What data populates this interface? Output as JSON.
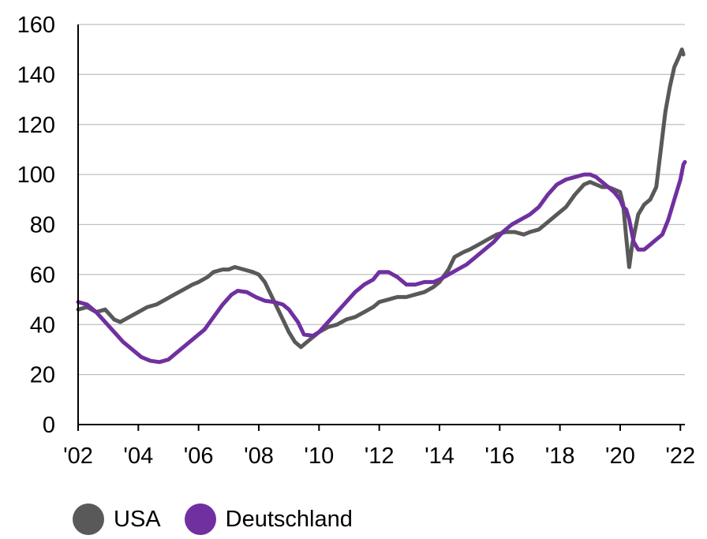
{
  "chart_data": {
    "type": "line",
    "ylim": [
      0,
      160
    ],
    "yticks": [
      "0",
      "20",
      "40",
      "60",
      "80",
      "100",
      "120",
      "140",
      "160"
    ],
    "xlim": [
      2002,
      2022.15
    ],
    "xticks": [
      {
        "x": 2002,
        "label": "'02"
      },
      {
        "x": 2004,
        "label": "'04"
      },
      {
        "x": 2006,
        "label": "'06"
      },
      {
        "x": 2008,
        "label": "'08"
      },
      {
        "x": 2010,
        "label": "'10"
      },
      {
        "x": 2012,
        "label": "'12"
      },
      {
        "x": 2014,
        "label": "'14"
      },
      {
        "x": 2016,
        "label": "'16"
      },
      {
        "x": 2018,
        "label": "'18"
      },
      {
        "x": 2020,
        "label": "'20"
      },
      {
        "x": 2022,
        "label": "'22"
      }
    ],
    "grid": true,
    "legend_position": "bottom-left",
    "series": [
      {
        "name": "USA",
        "color": "#595959",
        "points": [
          [
            2002.0,
            46
          ],
          [
            2002.3,
            47
          ],
          [
            2002.6,
            45
          ],
          [
            2002.9,
            46
          ],
          [
            2003.2,
            42
          ],
          [
            2003.4,
            41
          ],
          [
            2003.7,
            43
          ],
          [
            2004.0,
            45
          ],
          [
            2004.3,
            47
          ],
          [
            2004.6,
            48
          ],
          [
            2004.9,
            50
          ],
          [
            2005.2,
            52
          ],
          [
            2005.5,
            54
          ],
          [
            2005.8,
            56
          ],
          [
            2006.0,
            57
          ],
          [
            2006.3,
            59
          ],
          [
            2006.5,
            61
          ],
          [
            2006.8,
            62
          ],
          [
            2007.0,
            62
          ],
          [
            2007.2,
            63
          ],
          [
            2007.5,
            62
          ],
          [
            2007.8,
            61
          ],
          [
            2008.0,
            60
          ],
          [
            2008.2,
            57
          ],
          [
            2008.4,
            52
          ],
          [
            2008.6,
            47
          ],
          [
            2008.8,
            42
          ],
          [
            2009.0,
            37
          ],
          [
            2009.2,
            33
          ],
          [
            2009.4,
            31
          ],
          [
            2009.6,
            33
          ],
          [
            2009.8,
            35
          ],
          [
            2010.0,
            37
          ],
          [
            2010.3,
            39
          ],
          [
            2010.6,
            40
          ],
          [
            2010.9,
            42
          ],
          [
            2011.2,
            43
          ],
          [
            2011.5,
            45
          ],
          [
            2011.8,
            47
          ],
          [
            2012.0,
            49
          ],
          [
            2012.3,
            50
          ],
          [
            2012.6,
            51
          ],
          [
            2012.9,
            51
          ],
          [
            2013.2,
            52
          ],
          [
            2013.5,
            53
          ],
          [
            2013.8,
            55
          ],
          [
            2014.0,
            57
          ],
          [
            2014.3,
            62
          ],
          [
            2014.5,
            67
          ],
          [
            2014.8,
            69
          ],
          [
            2015.0,
            70
          ],
          [
            2015.3,
            72
          ],
          [
            2015.6,
            74
          ],
          [
            2015.9,
            76
          ],
          [
            2016.2,
            77
          ],
          [
            2016.5,
            77
          ],
          [
            2016.8,
            76
          ],
          [
            2017.0,
            77
          ],
          [
            2017.3,
            78
          ],
          [
            2017.6,
            81
          ],
          [
            2017.9,
            84
          ],
          [
            2018.2,
            87
          ],
          [
            2018.5,
            92
          ],
          [
            2018.8,
            96
          ],
          [
            2019.0,
            97
          ],
          [
            2019.2,
            96
          ],
          [
            2019.4,
            95
          ],
          [
            2019.6,
            95
          ],
          [
            2019.8,
            94
          ],
          [
            2020.0,
            93
          ],
          [
            2020.1,
            88
          ],
          [
            2020.2,
            75
          ],
          [
            2020.3,
            63
          ],
          [
            2020.4,
            72
          ],
          [
            2020.6,
            84
          ],
          [
            2020.8,
            88
          ],
          [
            2021.0,
            90
          ],
          [
            2021.2,
            95
          ],
          [
            2021.35,
            110
          ],
          [
            2021.5,
            125
          ],
          [
            2021.65,
            135
          ],
          [
            2021.8,
            143
          ],
          [
            2021.95,
            147
          ],
          [
            2022.05,
            150
          ],
          [
            2022.1,
            148
          ]
        ]
      },
      {
        "name": "Deutschland",
        "color": "#7030a0",
        "points": [
          [
            2002.0,
            49
          ],
          [
            2002.3,
            48
          ],
          [
            2002.6,
            45
          ],
          [
            2002.9,
            41
          ],
          [
            2003.2,
            37
          ],
          [
            2003.5,
            33
          ],
          [
            2003.8,
            30
          ],
          [
            2004.1,
            27
          ],
          [
            2004.4,
            25.5
          ],
          [
            2004.7,
            25
          ],
          [
            2005.0,
            26
          ],
          [
            2005.3,
            29
          ],
          [
            2005.6,
            32
          ],
          [
            2005.9,
            35
          ],
          [
            2006.2,
            38
          ],
          [
            2006.5,
            43
          ],
          [
            2006.8,
            48
          ],
          [
            2007.1,
            52
          ],
          [
            2007.3,
            53.5
          ],
          [
            2007.6,
            53
          ],
          [
            2007.9,
            51
          ],
          [
            2008.2,
            49.5
          ],
          [
            2008.5,
            49
          ],
          [
            2008.8,
            48
          ],
          [
            2009.0,
            46
          ],
          [
            2009.3,
            41
          ],
          [
            2009.5,
            36
          ],
          [
            2009.8,
            35.5
          ],
          [
            2010.0,
            37
          ],
          [
            2010.3,
            41
          ],
          [
            2010.6,
            45
          ],
          [
            2010.9,
            49
          ],
          [
            2011.2,
            53
          ],
          [
            2011.5,
            56
          ],
          [
            2011.8,
            58
          ],
          [
            2012.0,
            61
          ],
          [
            2012.3,
            61
          ],
          [
            2012.6,
            59
          ],
          [
            2012.9,
            56
          ],
          [
            2013.2,
            56
          ],
          [
            2013.5,
            57
          ],
          [
            2013.8,
            57
          ],
          [
            2014.0,
            58
          ],
          [
            2014.3,
            60
          ],
          [
            2014.6,
            62
          ],
          [
            2014.9,
            64
          ],
          [
            2015.2,
            67
          ],
          [
            2015.5,
            70
          ],
          [
            2015.8,
            73
          ],
          [
            2016.1,
            77
          ],
          [
            2016.4,
            80
          ],
          [
            2016.7,
            82
          ],
          [
            2017.0,
            84
          ],
          [
            2017.3,
            87
          ],
          [
            2017.6,
            92
          ],
          [
            2017.9,
            96
          ],
          [
            2018.2,
            98
          ],
          [
            2018.5,
            99
          ],
          [
            2018.8,
            100
          ],
          [
            2019.0,
            100
          ],
          [
            2019.2,
            99
          ],
          [
            2019.5,
            96
          ],
          [
            2019.8,
            93
          ],
          [
            2020.0,
            90
          ],
          [
            2020.1,
            87
          ],
          [
            2020.2,
            86
          ],
          [
            2020.3,
            82
          ],
          [
            2020.45,
            73
          ],
          [
            2020.6,
            70
          ],
          [
            2020.8,
            70
          ],
          [
            2021.0,
            72
          ],
          [
            2021.2,
            74
          ],
          [
            2021.4,
            76
          ],
          [
            2021.6,
            82
          ],
          [
            2021.8,
            90
          ],
          [
            2022.0,
            98
          ],
          [
            2022.1,
            104
          ],
          [
            2022.15,
            105
          ]
        ]
      }
    ]
  }
}
